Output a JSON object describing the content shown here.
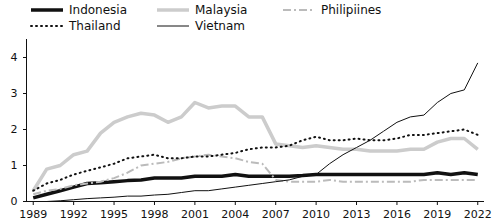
{
  "chart_data": {
    "type": "line",
    "x": [
      1989,
      1990,
      1991,
      1992,
      1993,
      1994,
      1995,
      1996,
      1997,
      1998,
      1999,
      2000,
      2001,
      2002,
      2003,
      2004,
      2005,
      2006,
      2007,
      2008,
      2009,
      2010,
      2011,
      2012,
      2013,
      2014,
      2015,
      2016,
      2017,
      2018,
      2019,
      2020,
      2021,
      2022
    ],
    "series": [
      {
        "name": "Indonesia",
        "color": "#111111",
        "line_style": "solid",
        "values": [
          0.1,
          0.2,
          0.3,
          0.4,
          0.5,
          0.52,
          0.55,
          0.58,
          0.6,
          0.65,
          0.65,
          0.65,
          0.7,
          0.7,
          0.7,
          0.75,
          0.7,
          0.7,
          0.7,
          0.7,
          0.72,
          0.75,
          0.75,
          0.75,
          0.75,
          0.75,
          0.75,
          0.75,
          0.75,
          0.75,
          0.8,
          0.75,
          0.8,
          0.75
        ]
      },
      {
        "name": "Malaysia",
        "color": "#cccccc",
        "line_style": "solid",
        "values": [
          0.3,
          0.9,
          1.0,
          1.3,
          1.4,
          1.9,
          2.2,
          2.35,
          2.45,
          2.4,
          2.2,
          2.35,
          2.75,
          2.6,
          2.65,
          2.65,
          2.35,
          2.35,
          1.6,
          1.55,
          1.5,
          1.55,
          1.5,
          1.45,
          1.45,
          1.4,
          1.4,
          1.4,
          1.45,
          1.45,
          1.65,
          1.75,
          1.75,
          1.45
        ]
      },
      {
        "name": "Philipiines",
        "color": "#bbbbbb",
        "line_style": "dashdot",
        "values": [
          0.2,
          0.3,
          0.35,
          0.45,
          0.5,
          0.55,
          0.65,
          0.8,
          1.0,
          1.05,
          1.1,
          1.2,
          1.25,
          1.3,
          1.25,
          1.2,
          1.1,
          1.05,
          0.6,
          0.55,
          0.55,
          0.55,
          0.6,
          0.55,
          0.55,
          0.55,
          0.55,
          0.55,
          0.55,
          0.6,
          0.6,
          0.6,
          0.6,
          0.6
        ]
      },
      {
        "name": "Thailand",
        "color": "#111111",
        "line_style": "dotted",
        "values": [
          0.3,
          0.5,
          0.6,
          0.75,
          0.85,
          0.95,
          1.05,
          1.2,
          1.25,
          1.3,
          1.2,
          1.2,
          1.25,
          1.25,
          1.3,
          1.35,
          1.45,
          1.5,
          1.5,
          1.55,
          1.7,
          1.8,
          1.7,
          1.7,
          1.75,
          1.7,
          1.7,
          1.75,
          1.85,
          1.85,
          1.9,
          1.95,
          2.0,
          1.85
        ]
      },
      {
        "name": "Vietnam",
        "color": "#111111",
        "line_style": "solid",
        "values": [
          0.0,
          0.0,
          0.02,
          0.05,
          0.08,
          0.1,
          0.12,
          0.15,
          0.15,
          0.18,
          0.2,
          0.25,
          0.3,
          0.3,
          0.35,
          0.4,
          0.45,
          0.5,
          0.55,
          0.6,
          0.7,
          0.75,
          1.05,
          1.3,
          1.5,
          1.7,
          1.95,
          2.2,
          2.35,
          2.4,
          2.75,
          3.0,
          3.1,
          3.85
        ]
      }
    ],
    "xlim": [
      1988.5,
      2022.5
    ],
    "xticks": [
      1989,
      1992,
      1995,
      1998,
      2001,
      2004,
      2007,
      2010,
      2013,
      2016,
      2019,
      2022
    ],
    "ylim": [
      0,
      4.5
    ],
    "yticks": [
      0,
      1,
      2,
      3,
      4
    ],
    "grid": false,
    "legend": "top-left"
  }
}
